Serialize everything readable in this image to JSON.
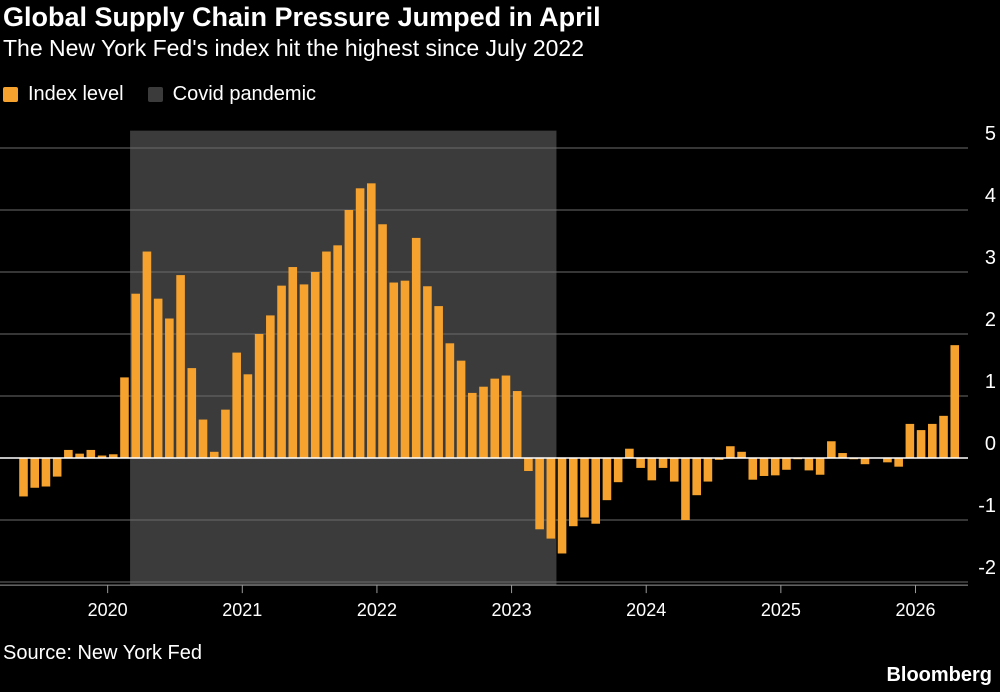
{
  "header": {
    "title": "Global Supply Chain Pressure Jumped in April",
    "subtitle": "The New York Fed's index hit the highest since July 2022"
  },
  "legend": {
    "items": [
      {
        "label": "Index level",
        "color": "#f6a22e"
      },
      {
        "label": "Covid pandemic",
        "color": "#3b3b3b"
      }
    ]
  },
  "footer": {
    "source": "Source: New York Fed",
    "brand": "Bloomberg"
  },
  "chart_data": {
    "type": "bar",
    "x_start": "2019-05",
    "x_step": "month",
    "series": [
      {
        "name": "Index level",
        "color": "#f6a22e",
        "values": [
          -0.62,
          -0.48,
          -0.46,
          -0.3,
          0.13,
          0.07,
          0.13,
          0.04,
          0.06,
          1.3,
          2.65,
          3.33,
          2.57,
          2.25,
          2.95,
          1.45,
          0.62,
          0.1,
          0.78,
          1.7,
          1.35,
          2.0,
          2.3,
          2.78,
          3.08,
          2.8,
          3.0,
          3.33,
          3.43,
          4.0,
          4.35,
          4.43,
          3.77,
          2.83,
          2.86,
          3.55,
          2.77,
          2.45,
          1.85,
          1.57,
          1.05,
          1.15,
          1.28,
          1.33,
          1.08,
          -0.21,
          -1.15,
          -1.3,
          -1.54,
          -1.1,
          -0.96,
          -1.06,
          -0.68,
          -0.39,
          0.15,
          -0.16,
          -0.36,
          -0.16,
          -0.38,
          -1.0,
          -0.6,
          -0.38,
          -0.03,
          0.19,
          0.1,
          -0.35,
          -0.29,
          -0.28,
          -0.19,
          -0.02,
          -0.2,
          -0.27,
          0.27,
          0.08,
          -0.02,
          -0.1,
          0.0,
          -0.07,
          -0.14,
          0.55,
          0.45,
          0.55,
          0.68,
          1.82
        ]
      }
    ],
    "shaded_region": {
      "label": "Covid pandemic",
      "start": "2020-03",
      "end": "2023-05",
      "color": "#3b3b3b"
    },
    "x_ticks": [
      {
        "label": "2020",
        "date": "2020-01"
      },
      {
        "label": "2021",
        "date": "2021-01"
      },
      {
        "label": "2022",
        "date": "2022-01"
      },
      {
        "label": "2023",
        "date": "2023-01"
      },
      {
        "label": "2024",
        "date": "2024-01"
      },
      {
        "label": "2025",
        "date": "2025-01"
      },
      {
        "label": "2026",
        "date": "2026-01"
      }
    ],
    "y_ticks": [
      5,
      4,
      3,
      2,
      1,
      0,
      -1,
      -2
    ],
    "ylim": [
      -2,
      5
    ],
    "grid": true,
    "y_axis_position": "right",
    "legend_position": "top-left"
  }
}
